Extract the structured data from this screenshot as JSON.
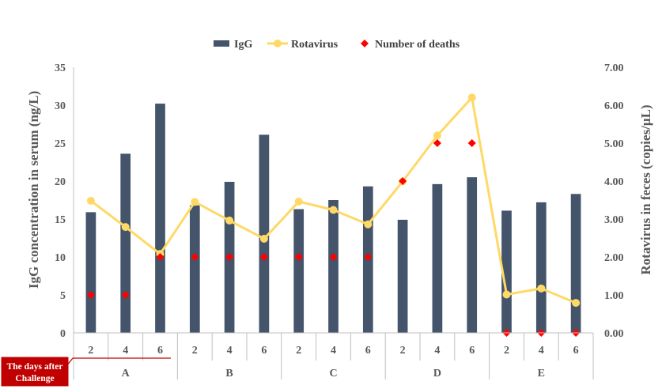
{
  "chart_data": {
    "type": "bar",
    "groups": [
      {
        "label": "A",
        "days": [
          "2",
          "4",
          "6"
        ]
      },
      {
        "label": "B",
        "days": [
          "2",
          "4",
          "6"
        ]
      },
      {
        "label": "C",
        "days": [
          "2",
          "4",
          "6"
        ]
      },
      {
        "label": "D",
        "days": [
          "2",
          "4",
          "6"
        ]
      },
      {
        "label": "E",
        "days": [
          "2",
          "4",
          "6"
        ]
      }
    ],
    "series": [
      {
        "name": "IgG",
        "kind": "bar",
        "axis": "left",
        "color": "#44546a",
        "values": [
          15.9,
          23.6,
          30.2,
          16.8,
          19.9,
          26.1,
          16.3,
          17.5,
          19.3,
          14.9,
          19.6,
          20.5,
          16.1,
          17.2,
          18.3
        ]
      },
      {
        "name": "Rotavirus",
        "kind": "line",
        "axis": "right",
        "color": "#ffd966",
        "values": [
          3.48,
          2.79,
          2.08,
          3.45,
          2.96,
          2.48,
          3.46,
          3.24,
          2.86,
          3.99,
          5.2,
          6.2,
          1.01,
          1.17,
          0.79
        ]
      },
      {
        "name": "Number of deaths",
        "kind": "scatter",
        "axis": "left",
        "color": "#ff0000",
        "marker": "diamond",
        "values": [
          5,
          5,
          10,
          10,
          10,
          10,
          10,
          10,
          10,
          20,
          25,
          25,
          0,
          0,
          0
        ]
      }
    ],
    "left_axis": {
      "title": "IgG concentration in serum (ng/L)",
      "min": 0,
      "max": 35,
      "step": 5,
      "ticks": [
        "0",
        "5",
        "10",
        "15",
        "20",
        "25",
        "30",
        "35"
      ]
    },
    "right_axis": {
      "title": "Rotavirus in feces (copies/µL)",
      "min": 0,
      "max": 7,
      "step": 1,
      "ticks": [
        "0.00",
        "1.00",
        "2.00",
        "3.00",
        "4.00",
        "5.00",
        "6.00",
        "7.00"
      ]
    },
    "grid": false,
    "legend_position": "top-center",
    "x_callout": {
      "line1": "The days after",
      "line2": "Challenge",
      "color": "#c00000"
    }
  }
}
